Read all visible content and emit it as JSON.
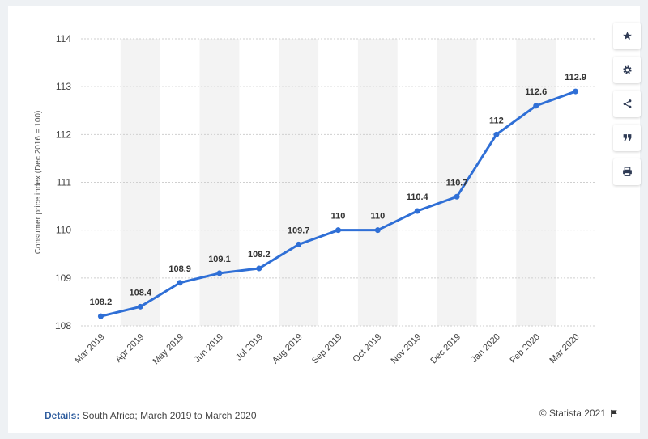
{
  "toolbar": {
    "buttons": [
      {
        "icon": "star-icon"
      },
      {
        "icon": "gear-icon"
      },
      {
        "icon": "share-icon"
      },
      {
        "icon": "quote-icon"
      },
      {
        "icon": "print-icon"
      }
    ]
  },
  "footer": {
    "details_label": "Details:",
    "details_text": "South Africa; March 2019 to March 2020",
    "credit": "© Statista 2021"
  },
  "colors": {
    "line": "#2f6fd6",
    "band": "#f3f3f3",
    "grid": "#cfcfcf",
    "text": "#555555"
  },
  "chart_data": {
    "type": "line",
    "title": "",
    "xlabel": "",
    "ylabel": "Consumer price index (Dec 2016 = 100)",
    "categories": [
      "Mar 2019",
      "Apr 2019",
      "May 2019",
      "Jun 2019",
      "Jul 2019",
      "Aug 2019",
      "Sep 2019",
      "Oct 2019",
      "Nov 2019",
      "Dec 2019",
      "Jan 2020",
      "Feb 2020",
      "Mar 2020"
    ],
    "series": [
      {
        "values": [
          108.2,
          108.4,
          108.9,
          109.1,
          109.2,
          109.7,
          110,
          110,
          110.4,
          110.7,
          112,
          112.6,
          112.9
        ]
      }
    ],
    "data_labels": [
      "108.2",
      "108.4",
      "108.9",
      "109.1",
      "109.2",
      "109.7",
      "110",
      "110",
      "110.4",
      "110.7",
      "112",
      "112.6",
      "112.9"
    ],
    "ylim": [
      108,
      114
    ],
    "yticks": [
      108,
      109,
      110,
      111,
      112,
      113,
      114
    ],
    "grid": true,
    "legend": "none"
  }
}
